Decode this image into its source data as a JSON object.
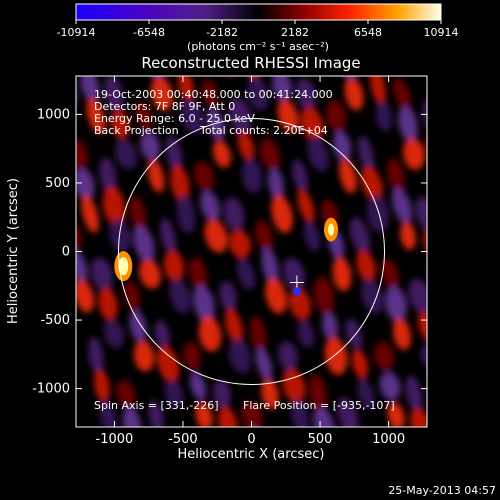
{
  "chart_data": {
    "type": "heatmap",
    "title": "Reconstructed RHESSI Image",
    "xlabel": "Heliocentric X (arcsec)",
    "ylabel": "Heliocentric Y (arcsec)",
    "xlim": [
      -1280,
      1280
    ],
    "ylim": [
      -1280,
      1280
    ],
    "x_ticks": [
      -1000,
      -500,
      0,
      500,
      1000
    ],
    "y_ticks": [
      -1000,
      -500,
      0,
      500,
      1000
    ],
    "colorbar": {
      "range": [
        -10914,
        10914
      ],
      "ticks": [
        "-10914",
        "-6548",
        "-2182",
        "2182",
        "6548",
        "10914"
      ],
      "unit_label": "(photons cm⁻² s⁻¹ asec⁻²)"
    },
    "annotations": {
      "time": "19-Oct-2003 00:40:48.000 to 00:41:24.000",
      "detectors": "Detectors: 7F 8F 9F, Att 0",
      "energy": "Energy Range: 6.0 - 25.0 keV",
      "method": "Back Projection",
      "counts": "Total counts: 2.20E+04",
      "spin_axis": "Spin Axis = [331,-226]",
      "flare_position": "Flare Position = [-935,-107]"
    },
    "solar_disk_radius": 970,
    "crosshair": [
      331,
      -226
    ],
    "sources": [
      {
        "x": -935,
        "y": -107,
        "intensity": 10914
      },
      {
        "x": 580,
        "y": 160,
        "intensity": 6548
      }
    ]
  },
  "footer": {
    "timestamp": "25-May-2013 04:57"
  },
  "colors": {
    "background": "#000000",
    "axes": "#ffffff"
  }
}
